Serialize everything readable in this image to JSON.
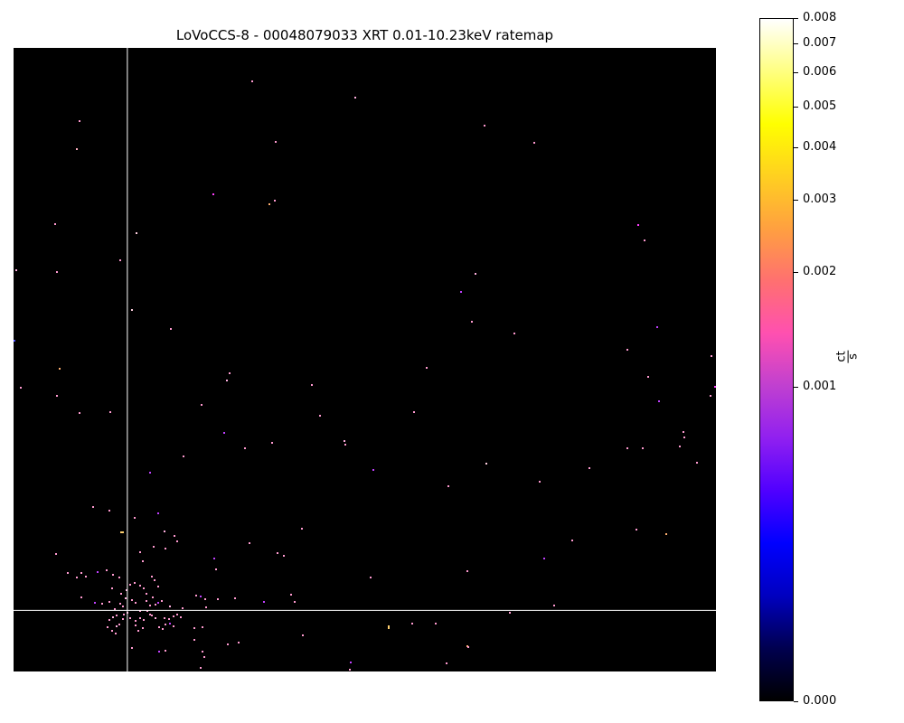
{
  "chart_data": {
    "type": "heatmap",
    "title": "LoVoCCS-8 - 00048079033 XRT 0.01-10.23keV ratemap",
    "colorbar": {
      "unit_numerator": "ct",
      "unit_denominator": "s",
      "scale": "log",
      "range": [
        0.0,
        0.008
      ],
      "ticks": [
        {
          "value": 0.0,
          "label": "0.000"
        },
        {
          "value": 0.001,
          "label": "0.001"
        },
        {
          "value": 0.002,
          "label": "0.002"
        },
        {
          "value": 0.003,
          "label": "0.003"
        },
        {
          "value": 0.004,
          "label": "0.004"
        },
        {
          "value": 0.005,
          "label": "0.005"
        },
        {
          "value": 0.006,
          "label": "0.006"
        },
        {
          "value": 0.007,
          "label": "0.007"
        },
        {
          "value": 0.008,
          "label": "0.008"
        }
      ],
      "colormap": [
        "#000000",
        "#000050",
        "#0000c0",
        "#0000ff",
        "#5000ff",
        "#9020f0",
        "#c040d0",
        "#ff50b0",
        "#ff7070",
        "#ffa040",
        "#ffd020",
        "#ffff00",
        "#ffff80",
        "#ffffff"
      ]
    },
    "crosshair": {
      "x": 0.162,
      "y": 0.902
    },
    "background_color": "#000000",
    "crosshair_color": "#ffffff"
  }
}
